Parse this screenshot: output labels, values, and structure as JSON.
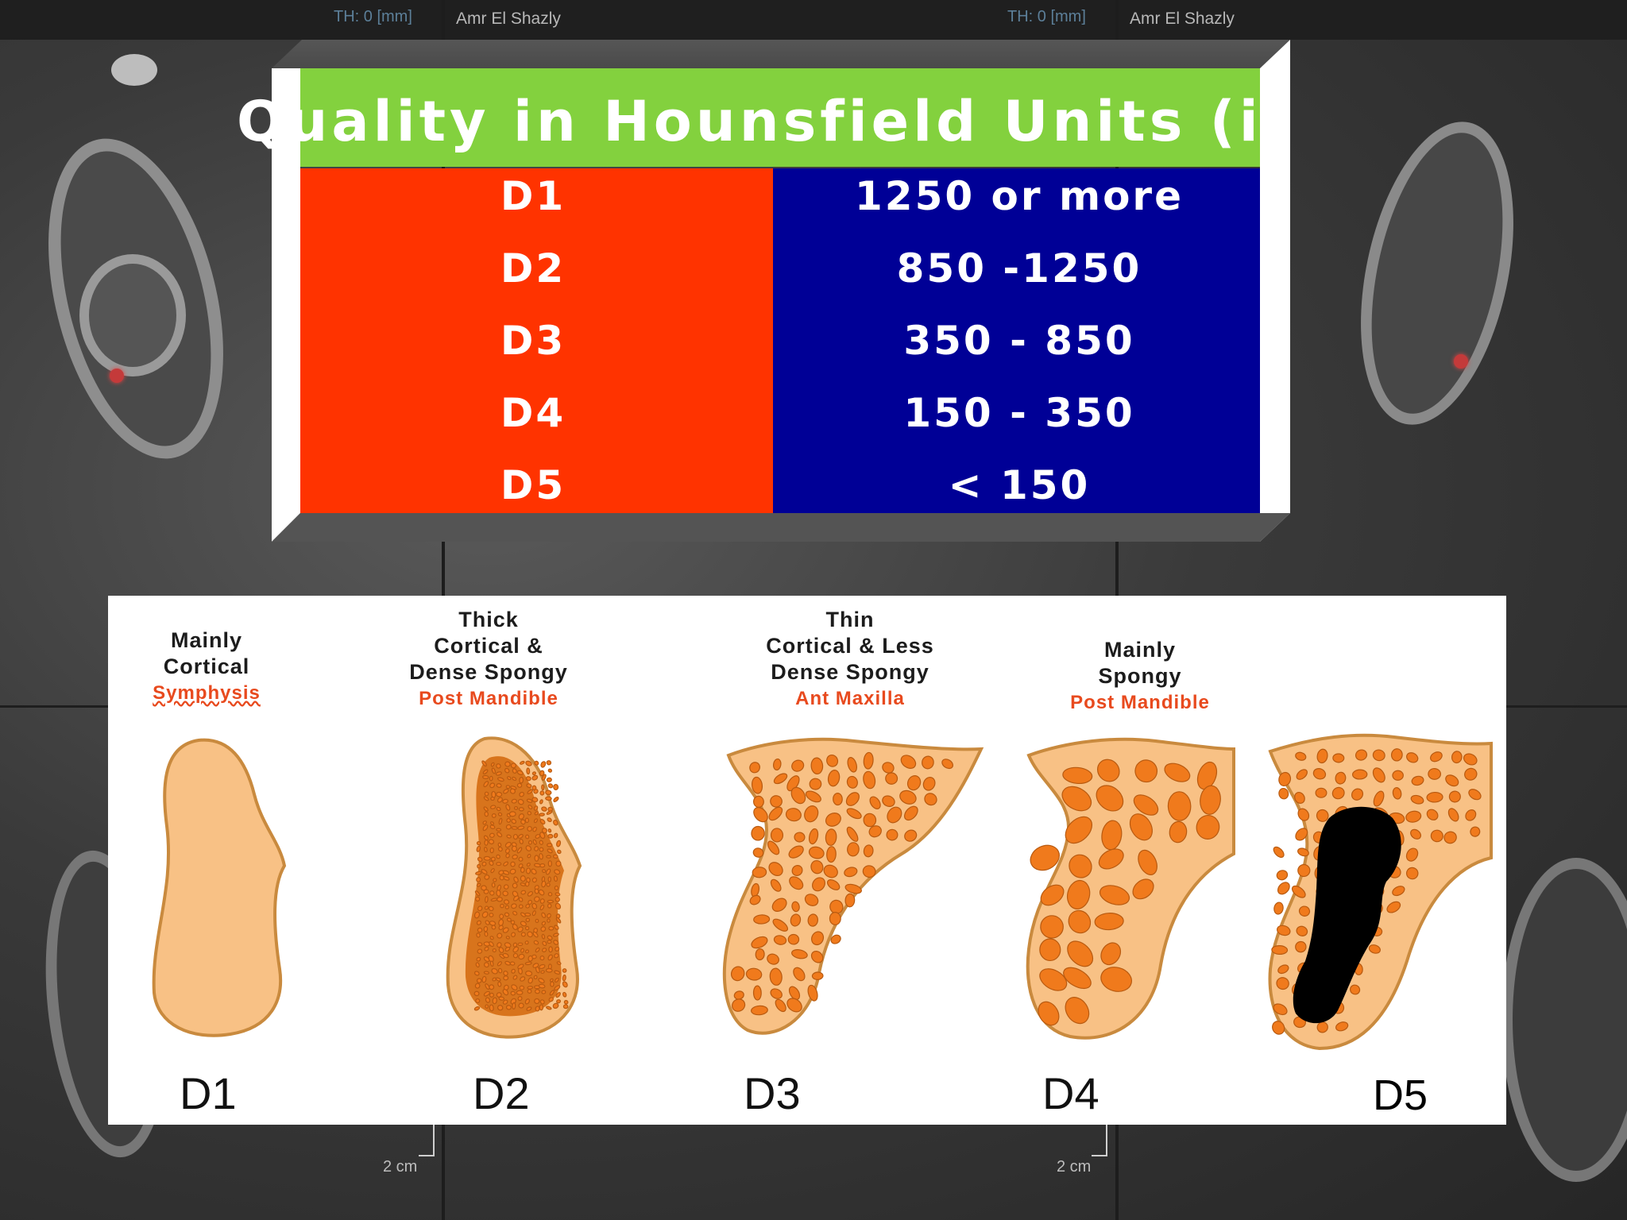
{
  "viewer": {
    "panes": [
      {
        "thickness": "TH: 0 [mm]",
        "author": "Amr El Shazly",
        "scale": "2 cm"
      },
      {
        "thickness": "TH: 0 [mm]",
        "author": "Amr El Shazly",
        "scale": "2 cm"
      }
    ]
  },
  "hounsfield_table": {
    "title": "Quality in Hounsfield Units (in CT)",
    "rows": [
      {
        "code": "D1",
        "value": "1250 or more"
      },
      {
        "code": "D2",
        "value": "850 -1250"
      },
      {
        "code": "D3",
        "value": "350 - 850"
      },
      {
        "code": "D4",
        "value": "150 - 350"
      },
      {
        "code": "D5",
        "value": "< 150"
      }
    ],
    "colors": {
      "title_bar": "#83d13e",
      "code_column": "#ff3300",
      "value_column": "#000096"
    }
  },
  "bone_types": [
    {
      "label": "D1",
      "caption_lines": [
        "Mainly",
        "Cortical"
      ],
      "location": "Symphysis"
    },
    {
      "label": "D2",
      "caption_lines": [
        "Thick",
        "Cortical &",
        "Dense Spongy"
      ],
      "location": "Post Mandible"
    },
    {
      "label": "D3",
      "caption_lines": [
        "Thin",
        "Cortical & Less",
        "Dense Spongy"
      ],
      "location": "Ant Maxilla"
    },
    {
      "label": "D4",
      "caption_lines": [
        "Mainly",
        "Spongy"
      ],
      "location": "Post Mandible"
    },
    {
      "label": "D5"
    }
  ],
  "bone_colors": {
    "cortical": "#f8c185",
    "trabecula": "#f07a1c",
    "outline": "#c98a3e",
    "implant": "#000000"
  }
}
